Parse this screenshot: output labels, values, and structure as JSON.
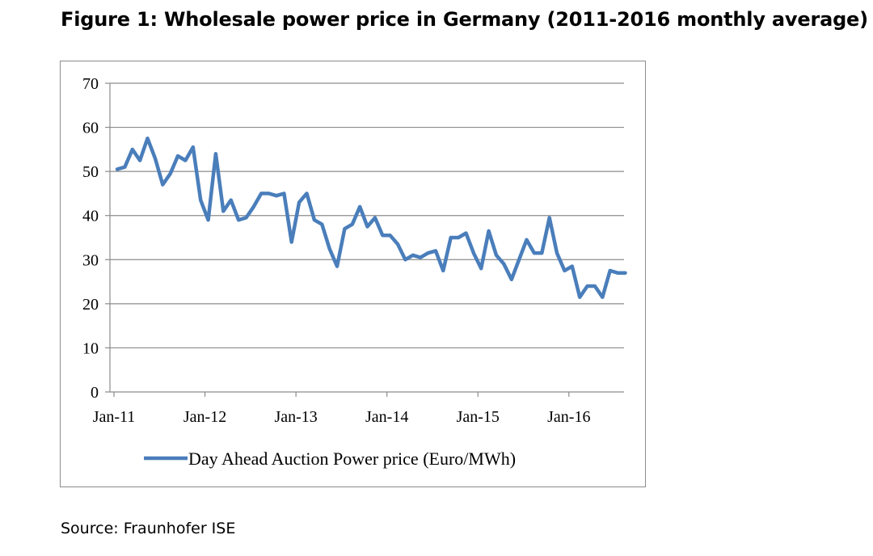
{
  "figure": {
    "title": "Figure 1: Wholesale power price in Germany (2011-2016 monthly average)",
    "source": "Source: Fraunhofer ISE"
  },
  "chart_data": {
    "type": "line",
    "title": "Figure 1: Wholesale power price in Germany (2011-2016 monthly average)",
    "xlabel": "",
    "ylabel": "",
    "ylim": [
      0,
      70
    ],
    "yticks": [
      0,
      10,
      20,
      30,
      40,
      50,
      60,
      70
    ],
    "xtick_labels": [
      "Jan-11",
      "Jan-12",
      "Jan-13",
      "Jan-14",
      "Jan-15",
      "Jan-16"
    ],
    "x_start": "Jan-11",
    "x_unit": "month",
    "grid": true,
    "legend_position": "bottom",
    "line_color": "#4a7ebb",
    "series": [
      {
        "name": "Day Ahead Auction Power price (Euro/MWh)",
        "values": [
          50.5,
          51.0,
          55.0,
          52.5,
          57.5,
          53.0,
          47.0,
          49.5,
          53.5,
          52.5,
          55.5,
          43.5,
          39.0,
          54.0,
          41.0,
          43.5,
          39.0,
          39.5,
          42.0,
          45.0,
          45.0,
          44.5,
          45.0,
          34.0,
          43.0,
          45.0,
          39.0,
          38.0,
          32.5,
          28.5,
          37.0,
          38.0,
          42.0,
          37.5,
          39.5,
          35.5,
          35.5,
          33.5,
          30.0,
          31.0,
          30.5,
          31.5,
          32.0,
          27.5,
          35.0,
          35.0,
          36.0,
          31.5,
          28.0,
          36.5,
          31.0,
          29.0,
          25.5,
          30.0,
          34.5,
          31.5,
          31.5,
          39.5,
          31.5,
          27.5,
          28.5,
          21.5,
          24.0,
          24.0,
          21.5,
          27.5,
          27.0,
          27.0
        ]
      }
    ]
  }
}
